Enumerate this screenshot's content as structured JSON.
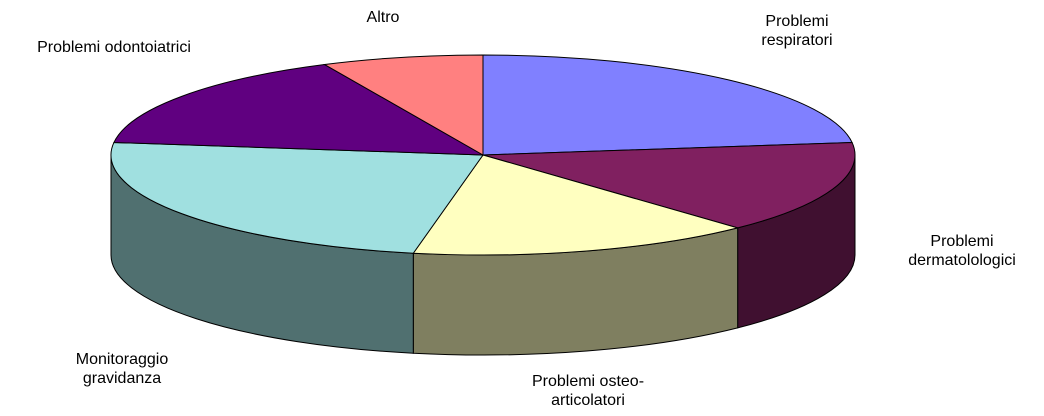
{
  "chart_data": {
    "type": "pie3d",
    "categories": [
      "Problemi respiratori",
      "Problemi dermatolologici",
      "Problemi osteo-articolatori",
      "Monitoraggio gravidanza",
      "Problemi odontoiatrici",
      "Altro"
    ],
    "values": [
      23,
      15,
      15,
      24,
      16,
      7
    ],
    "colors": [
      "#8080ff",
      "#802060",
      "#ffffc0",
      "#a0e0e0",
      "#600080",
      "#ff8080"
    ]
  }
}
